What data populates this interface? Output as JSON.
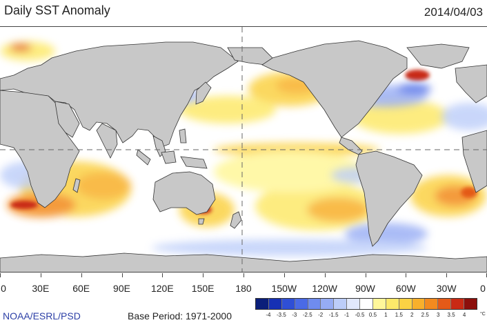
{
  "title": "Daily SST Anomaly",
  "date": "2014/04/03",
  "x_axis_ticks": [
    "0",
    "30E",
    "60E",
    "90E",
    "120E",
    "150E",
    "180",
    "150W",
    "120W",
    "90W",
    "60W",
    "30W",
    "0"
  ],
  "source": "NOAA/ESRL/PSD",
  "base_period": "Base Period: 1971-2000",
  "colorbar": {
    "labels": [
      "-4",
      "-3.5",
      "-3",
      "-2.5",
      "-2",
      "-1.5",
      "-1",
      "-0.5",
      "0.5",
      "1",
      "1.5",
      "2",
      "2.5",
      "3",
      "3.5",
      "4"
    ],
    "unit": "°C",
    "colors": [
      "#0b1f7a",
      "#1630b4",
      "#2f4fd6",
      "#4a6ae6",
      "#6f8cef",
      "#96acf4",
      "#bccdf9",
      "#e1e8fc",
      "#ffffff",
      "#fff79a",
      "#fde96a",
      "#fbd244",
      "#f8b02c",
      "#f38a1f",
      "#e45a18",
      "#c92a14",
      "#8c0f0c"
    ]
  },
  "map_colors": {
    "land": "#c8c8c8",
    "ocean": "#ffffff",
    "coast": "#333333"
  }
}
